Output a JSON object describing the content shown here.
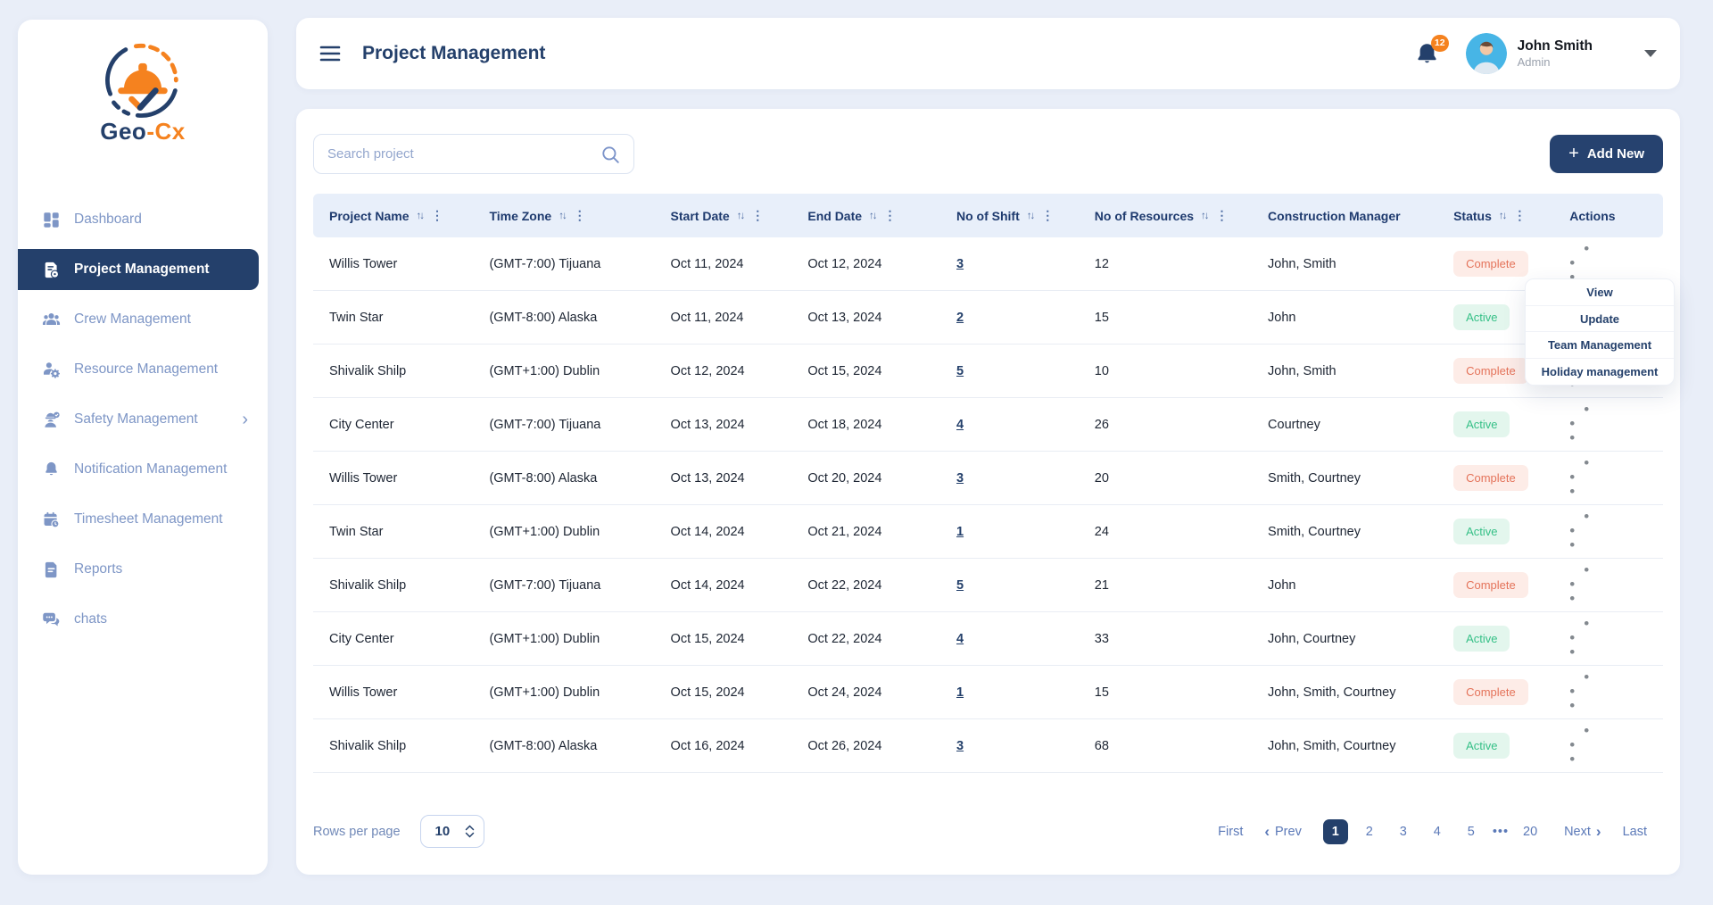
{
  "brand": {
    "text_primary": "Geo",
    "text_accent": "-Cx"
  },
  "sidebar": {
    "items": [
      {
        "id": "dashboard",
        "icon": "dashboard",
        "label": "Dashboard",
        "active": false,
        "chevron": false
      },
      {
        "id": "project-management",
        "icon": "project",
        "label": "Project Management",
        "active": true,
        "chevron": false
      },
      {
        "id": "crew-management",
        "icon": "crew",
        "label": "Crew Management",
        "active": false,
        "chevron": false
      },
      {
        "id": "resource-management",
        "icon": "resource",
        "label": "Resource Management",
        "active": false,
        "chevron": false
      },
      {
        "id": "safety-management",
        "icon": "safety",
        "label": "Safety Management",
        "active": false,
        "chevron": true
      },
      {
        "id": "notification-management",
        "icon": "notification",
        "label": "Notification Management",
        "active": false,
        "chevron": false
      },
      {
        "id": "timesheet-management",
        "icon": "timesheet",
        "label": "Timesheet Management",
        "active": false,
        "chevron": false
      },
      {
        "id": "reports",
        "icon": "reports",
        "label": "Reports",
        "active": false,
        "chevron": false
      },
      {
        "id": "chats",
        "icon": "chats",
        "label": "chats",
        "active": false,
        "chevron": false
      }
    ]
  },
  "header": {
    "title": "Project Management",
    "notification_count": "12",
    "user": {
      "name": "John Smith",
      "role": "Admin"
    }
  },
  "toolbar": {
    "search_placeholder": "Search project",
    "add_new_label": "Add New"
  },
  "table": {
    "columns": [
      {
        "label": "Project Name",
        "sortable": true,
        "menu": true
      },
      {
        "label": "Time Zone",
        "sortable": true,
        "menu": true
      },
      {
        "label": "Start Date",
        "sortable": true,
        "menu": true
      },
      {
        "label": "End Date",
        "sortable": true,
        "menu": true
      },
      {
        "label": "No of Shift",
        "sortable": true,
        "menu": true
      },
      {
        "label": "No of Resources",
        "sortable": true,
        "menu": true
      },
      {
        "label": "Construction Manager",
        "sortable": false,
        "menu": false
      },
      {
        "label": "Status",
        "sortable": true,
        "menu": true
      },
      {
        "label": "Actions",
        "sortable": false,
        "menu": false
      }
    ],
    "rows": [
      {
        "project": "Willis Tower",
        "timezone": "(GMT-7:00) Tijuana",
        "start_date": "Oct 11, 2024",
        "end_date": "Oct 12, 2024",
        "shifts": "3",
        "resources": "12",
        "manager": "John, Smith",
        "status": "Complete"
      },
      {
        "project": "Twin Star",
        "timezone": "(GMT-8:00) Alaska",
        "start_date": "Oct 11, 2024",
        "end_date": "Oct 13, 2024",
        "shifts": "2",
        "resources": "15",
        "manager": "John",
        "status": "Active"
      },
      {
        "project": "Shivalik Shilp",
        "timezone": "(GMT+1:00) Dublin",
        "start_date": "Oct 12, 2024",
        "end_date": "Oct 15, 2024",
        "shifts": "5",
        "resources": "10",
        "manager": "John, Smith",
        "status": "Complete"
      },
      {
        "project": "City Center",
        "timezone": "(GMT-7:00) Tijuana",
        "start_date": "Oct 13, 2024",
        "end_date": "Oct 18, 2024",
        "shifts": "4",
        "resources": "26",
        "manager": "Courtney",
        "status": "Active"
      },
      {
        "project": "Willis Tower",
        "timezone": "(GMT-8:00) Alaska",
        "start_date": "Oct 13, 2024",
        "end_date": "Oct 20, 2024",
        "shifts": "3",
        "resources": "20",
        "manager": "Smith, Courtney",
        "status": "Complete"
      },
      {
        "project": "Twin Star",
        "timezone": "(GMT+1:00) Dublin",
        "start_date": "Oct 14, 2024",
        "end_date": "Oct 21, 2024",
        "shifts": "1",
        "resources": "24",
        "manager": "Smith, Courtney",
        "status": "Active"
      },
      {
        "project": "Shivalik Shilp",
        "timezone": "(GMT-7:00) Tijuana",
        "start_date": "Oct 14, 2024",
        "end_date": "Oct 22, 2024",
        "shifts": "5",
        "resources": "21",
        "manager": "John",
        "status": "Complete"
      },
      {
        "project": "City Center",
        "timezone": "(GMT+1:00) Dublin",
        "start_date": "Oct 15, 2024",
        "end_date": "Oct 22, 2024",
        "shifts": "4",
        "resources": "33",
        "manager": "John, Courtney",
        "status": "Active"
      },
      {
        "project": "Willis Tower",
        "timezone": "(GMT+1:00) Dublin",
        "start_date": "Oct 15, 2024",
        "end_date": "Oct 24, 2024",
        "shifts": "1",
        "resources": "15",
        "manager": "John, Smith, Courtney",
        "status": "Complete"
      },
      {
        "project": "Shivalik Shilp",
        "timezone": "(GMT-8:00) Alaska",
        "start_date": "Oct 16, 2024",
        "end_date": "Oct 26, 2024",
        "shifts": "3",
        "resources": "68",
        "manager": "John, Smith, Courtney",
        "status": "Active"
      }
    ]
  },
  "context_menu": {
    "items": [
      "View",
      "Update",
      "Team Management",
      "Holiday management"
    ]
  },
  "pagination": {
    "rows_per_page_label": "Rows per page",
    "rows_per_page_value": "10",
    "first_label": "First",
    "prev_label": "Prev",
    "next_label": "Next",
    "last_label": "Last",
    "pages": [
      "1",
      "2",
      "3",
      "4",
      "5",
      "•••",
      "20"
    ],
    "active_page": "1"
  },
  "colors": {
    "primary": "#24406b",
    "accent": "#f5821f",
    "status_complete_text": "#e4735a",
    "status_complete_bg": "#fdece7",
    "status_active_text": "#36c087",
    "status_active_bg": "#e3f6ed"
  }
}
